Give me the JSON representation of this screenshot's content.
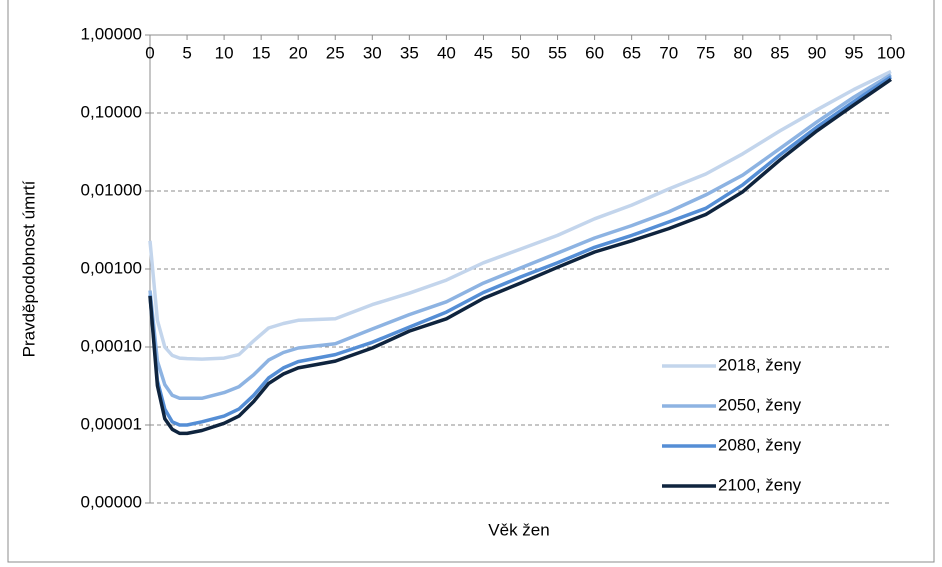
{
  "chart_data": {
    "type": "line",
    "x_label": "Věk žen",
    "y_label": "Pravděpodobnost úmrtí",
    "x": [
      0,
      1,
      2,
      3,
      4,
      5,
      7,
      10,
      12,
      14,
      16,
      18,
      20,
      25,
      30,
      35,
      40,
      45,
      50,
      55,
      60,
      65,
      70,
      75,
      80,
      85,
      90,
      95,
      100
    ],
    "xlim": [
      0,
      100
    ],
    "xticks": [
      0,
      5,
      10,
      15,
      20,
      25,
      30,
      35,
      40,
      45,
      50,
      55,
      60,
      65,
      70,
      75,
      80,
      85,
      90,
      95,
      100
    ],
    "ylim": [
      1e-06,
      1
    ],
    "log_y": true,
    "yticks": [
      {
        "value": 1e-06,
        "label": "0,00000"
      },
      {
        "value": 1e-05,
        "label": "0,00001"
      },
      {
        "value": 0.0001,
        "label": "0,00010"
      },
      {
        "value": 0.001,
        "label": "0,00100"
      },
      {
        "value": 0.01,
        "label": "0,01000"
      },
      {
        "value": 0.1,
        "label": "0,10000"
      },
      {
        "value": 1,
        "label": "1,00000"
      }
    ],
    "grid": true,
    "legend": "right",
    "series": [
      {
        "name": "2018, ženy",
        "color": "#c3d5ec",
        "values": [
          0.0023,
          0.00022,
          0.0001,
          7.8e-05,
          7.2e-05,
          7.1e-05,
          7e-05,
          7.2e-05,
          8e-05,
          0.00012,
          0.000175,
          0.0002,
          0.00022,
          0.00023,
          0.00035,
          0.00049,
          0.00072,
          0.0012,
          0.0018,
          0.0027,
          0.0044,
          0.0066,
          0.0106,
          0.0165,
          0.03,
          0.059,
          0.11,
          0.2,
          0.34
        ]
      },
      {
        "name": "2050, ženy",
        "color": "#8db3e2",
        "values": [
          0.00053,
          6.6e-05,
          3.3e-05,
          2.4e-05,
          2.2e-05,
          2.2e-05,
          2.2e-05,
          2.6e-05,
          3.1e-05,
          4.4e-05,
          6.8e-05,
          8.5e-05,
          9.7e-05,
          0.00011,
          0.00017,
          0.00026,
          0.00038,
          0.00066,
          0.00103,
          0.0016,
          0.0025,
          0.0036,
          0.0054,
          0.0089,
          0.016,
          0.035,
          0.077,
          0.16,
          0.31
        ]
      },
      {
        "name": "2080, ženy",
        "color": "#558ed5",
        "values": [
          0.00046,
          3.7e-05,
          1.6e-05,
          1.1e-05,
          1e-05,
          1e-05,
          1.1e-05,
          1.3e-05,
          1.6e-05,
          2.4e-05,
          4e-05,
          5.4e-05,
          6.5e-05,
          8e-05,
          0.000115,
          0.00018,
          0.00028,
          0.0005,
          0.00079,
          0.0012,
          0.0019,
          0.0027,
          0.004,
          0.006,
          0.012,
          0.029,
          0.066,
          0.14,
          0.29
        ]
      },
      {
        "name": "2100, ženy",
        "color": "#0f243e",
        "values": [
          0.00045,
          3.2e-05,
          1.2e-05,
          8.8e-06,
          7.8e-06,
          7.8e-06,
          8.5e-06,
          1.05e-05,
          1.3e-05,
          2e-05,
          3.4e-05,
          4.5e-05,
          5.4e-05,
          6.6e-05,
          9.7e-05,
          0.00016,
          0.00023,
          0.00042,
          0.00066,
          0.00105,
          0.00165,
          0.0023,
          0.0033,
          0.005,
          0.0098,
          0.025,
          0.059,
          0.127,
          0.27
        ]
      }
    ]
  }
}
